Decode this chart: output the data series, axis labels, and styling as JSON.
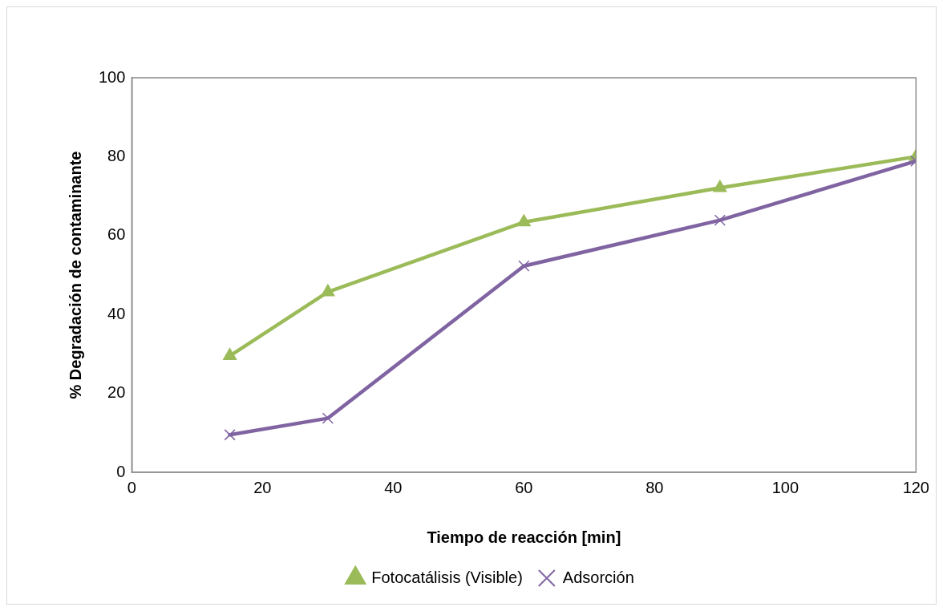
{
  "chart_data": {
    "type": "line",
    "xlabel": "Tiempo de reacción [min]",
    "ylabel": "% Degradación de contaminante",
    "x": [
      15,
      30,
      60,
      90,
      120
    ],
    "series": [
      {
        "name": "Fotocatálisis (Visible)",
        "color": "#9bbb59",
        "marker": "triangle",
        "values": [
          29.5,
          45.7,
          63.4,
          72.1,
          80.0
        ]
      },
      {
        "name": "Adsorción",
        "color": "#8064a2",
        "marker": "cross",
        "values": [
          9.5,
          13.7,
          52.3,
          63.9,
          78.9
        ]
      }
    ],
    "xlim": [
      0,
      120
    ],
    "xticks": [
      0,
      20,
      40,
      60,
      80,
      100,
      120
    ],
    "ylim": [
      0,
      100
    ],
    "yticks": [
      0,
      20,
      40,
      60,
      80,
      100
    ],
    "grid": false,
    "legend": "bottom",
    "line_style": "solid"
  }
}
